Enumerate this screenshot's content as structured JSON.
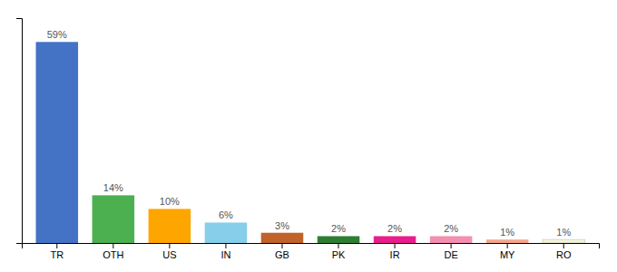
{
  "chart_data": {
    "type": "bar",
    "categories": [
      "TR",
      "OTH",
      "US",
      "IN",
      "GB",
      "PK",
      "IR",
      "DE",
      "MY",
      "RO"
    ],
    "values": [
      59,
      14,
      10,
      6,
      3,
      2,
      2,
      2,
      1,
      1
    ],
    "value_labels": [
      "59%",
      "14%",
      "10%",
      "6%",
      "3%",
      "2%",
      "2%",
      "2%",
      "1%",
      "1%"
    ],
    "colors": [
      "#4472c4",
      "#4caf50",
      "#ffa500",
      "#87ceeb",
      "#c0622a",
      "#2e7d32",
      "#e91e8c",
      "#f48fb1",
      "#f4a58a",
      "#f5f5dc"
    ],
    "ylim": [
      0,
      66
    ],
    "data_labels": true,
    "tick_labels": "x"
  }
}
